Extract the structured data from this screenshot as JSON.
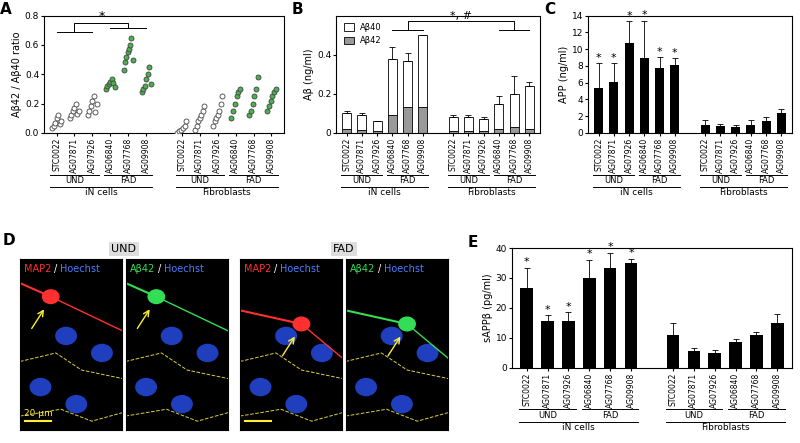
{
  "chart_data": [
    {
      "type": "scatter",
      "panel": "A",
      "y_label": "Aβ42 / Aβ40 ratio",
      "categories": [
        "STC0022",
        "AG07871",
        "AG07926",
        "AG06840",
        "AG07768",
        "AG09908",
        null,
        "STC0022",
        "AG07871",
        "AG07926",
        "AG06840",
        "AG07768",
        "AG09908"
      ],
      "subgroups": [
        "UND",
        "FAD"
      ],
      "groups": [
        "iN cells",
        "Fibroblasts"
      ],
      "colors": [
        "#ffffff",
        "#ffffff",
        "#ffffff",
        "#4caf50",
        "#4caf50",
        "#4caf50",
        null,
        "#ffffff",
        "#ffffff",
        "#ffffff",
        "#4caf50",
        "#4caf50",
        "#4caf50"
      ],
      "values": [
        [
          0.03,
          0.05,
          0.07,
          0.1,
          0.12,
          0.06,
          0.08
        ],
        [
          0.1,
          0.12,
          0.15,
          0.17,
          0.2,
          0.13,
          0.15
        ],
        [
          0.12,
          0.15,
          0.18,
          0.22,
          0.25,
          0.14,
          0.2
        ],
        [
          0.3,
          0.32,
          0.33,
          0.35,
          0.37,
          0.34,
          0.31
        ],
        [
          0.43,
          0.48,
          0.52,
          0.55,
          0.57,
          0.6,
          0.65,
          0.5
        ],
        [
          0.28,
          0.3,
          0.32,
          0.37,
          0.4,
          0.45,
          0.33
        ],
        null,
        [
          0.0,
          0.01,
          0.02,
          0.03,
          0.05,
          0.08
        ],
        [
          0.02,
          0.05,
          0.08,
          0.1,
          0.12,
          0.15,
          0.18
        ],
        [
          0.05,
          0.08,
          0.1,
          0.12,
          0.15,
          0.2,
          0.25
        ],
        [
          0.1,
          0.15,
          0.2,
          0.25,
          0.28,
          0.3
        ],
        [
          0.12,
          0.15,
          0.2,
          0.25,
          0.3,
          0.38
        ],
        [
          0.15,
          0.18,
          0.22,
          0.25,
          0.28,
          0.3
        ]
      ],
      "ylim": [
        0,
        0.8
      ],
      "yticks": [
        {
          "value": 0,
          "label": "0.0"
        },
        0.2,
        0.4,
        0.6,
        0.8
      ],
      "significance": "*"
    },
    {
      "type": "bar",
      "panel": "B",
      "y_label": "Aβ (ng/ml)",
      "stacked": true,
      "legend": "upper left",
      "categories": [
        "STC0022",
        "AG07871",
        "AG07926",
        "AG06840",
        "AG07768",
        "AG09908",
        null,
        "STC0022",
        "AG07871",
        "AG07926",
        "AG06840",
        "AG07768",
        "AG09908"
      ],
      "subgroups": [
        "UND",
        "FAD"
      ],
      "groups": [
        "iN cells",
        "Fibroblasts"
      ],
      "series": [
        {
          "name": "Aβ42",
          "color": "#999999",
          "values": [
            0.02,
            0.015,
            0.01,
            0.09,
            0.13,
            0.13,
            null,
            0.01,
            0.01,
            0.01,
            0.02,
            0.03,
            0.02
          ]
        },
        {
          "name": "Aβ40",
          "color": "#ffffff",
          "values": [
            0.08,
            0.075,
            0.05,
            0.29,
            0.24,
            0.37,
            null,
            0.07,
            0.07,
            0.06,
            0.13,
            0.17,
            0.22
          ]
        }
      ],
      "errors": [
        0.01,
        0.01,
        0,
        0.06,
        0.04,
        0,
        null,
        0.01,
        0.01,
        0.01,
        0.04,
        0.09,
        0.02
      ],
      "ylim": [
        0,
        0.6
      ],
      "yticks": [
        0,
        0.2,
        0.4
      ],
      "significance": "*, #"
    },
    {
      "type": "bar",
      "panel": "C",
      "y_label": "APP (ng/ml)",
      "color": "#000000",
      "categories": [
        "STC0022",
        "AG07871",
        "AG07926",
        "AG06840",
        "AG07768",
        "AG09908",
        null,
        "STC0022",
        "AG07871",
        "AG07926",
        "AG06840",
        "AG07768",
        "AG09908"
      ],
      "subgroups": [
        "UND",
        "FAD"
      ],
      "groups": [
        "iN cells",
        "Fibroblasts"
      ],
      "values": [
        5.3,
        6.1,
        10.7,
        8.9,
        7.7,
        8.1,
        null,
        0.9,
        0.8,
        0.7,
        0.9,
        1.4,
        2.4
      ],
      "errors": [
        3,
        2.2,
        2.6,
        4.5,
        1.3,
        0.8,
        null,
        0.6,
        0.3,
        0.2,
        0.6,
        0.5,
        0.5
      ],
      "significance_labels": [
        "*",
        "*",
        "*",
        "*",
        "*",
        "*",
        null,
        null,
        null,
        null,
        null,
        null,
        null
      ],
      "ylim": [
        0,
        14
      ],
      "yticks": [
        0,
        2,
        4,
        6,
        8,
        10,
        12,
        14
      ]
    },
    {
      "type": "image",
      "panel": "D",
      "panels": [
        {
          "title": "UND",
          "stains": [
            {
              "parts": [
                "MAP2",
                "/",
                "Hoechst"
              ],
              "colors": [
                "#ff3030",
                "#ffffff",
                "#4a7dff"
              ]
            },
            {
              "parts": [
                "Aβ42",
                "/",
                "Hoechst"
              ],
              "colors": [
                "#33dd55",
                "#ffffff",
                "#4a7dff"
              ]
            }
          ]
        },
        {
          "title": "FAD",
          "stains": [
            {
              "parts": [
                "MAP2",
                "/",
                "Hoechst"
              ],
              "colors": [
                "#ff3030",
                "#ffffff",
                "#4a7dff"
              ]
            },
            {
              "parts": [
                "Aβ42",
                "/",
                "Hoechst"
              ],
              "colors": [
                "#33dd55",
                "#ffffff",
                "#4a7dff"
              ]
            }
          ]
        }
      ],
      "scale_bar": "20 μm"
    },
    {
      "type": "bar",
      "panel": "E",
      "y_label": "sAPPβ (pg/ml)",
      "color": "#000000",
      "categories": [
        "STC0022",
        "AG07871",
        "AG07926",
        "AG06840",
        "AG07768",
        "AG09908",
        null,
        "STC0022",
        "AG07871",
        "AG07926",
        "AG06840",
        "AG07768",
        "AG09908"
      ],
      "subgroups": [
        "UND",
        "FAD"
      ],
      "groups": [
        "iN cells",
        "Fibroblasts"
      ],
      "values": [
        26.5,
        15.5,
        15.5,
        30,
        33.5,
        35,
        null,
        11,
        5.5,
        5,
        8.5,
        11,
        15
      ],
      "errors": [
        7,
        2,
        3,
        6,
        5,
        1.5,
        null,
        4,
        1,
        1,
        1,
        1,
        3
      ],
      "significance_labels": [
        "*",
        "*",
        "*",
        "*",
        "*",
        "*",
        null,
        null,
        null,
        null,
        null,
        null,
        null
      ],
      "ylim": [
        0,
        40
      ],
      "yticks": [
        0,
        10,
        20,
        30,
        40
      ]
    }
  ]
}
